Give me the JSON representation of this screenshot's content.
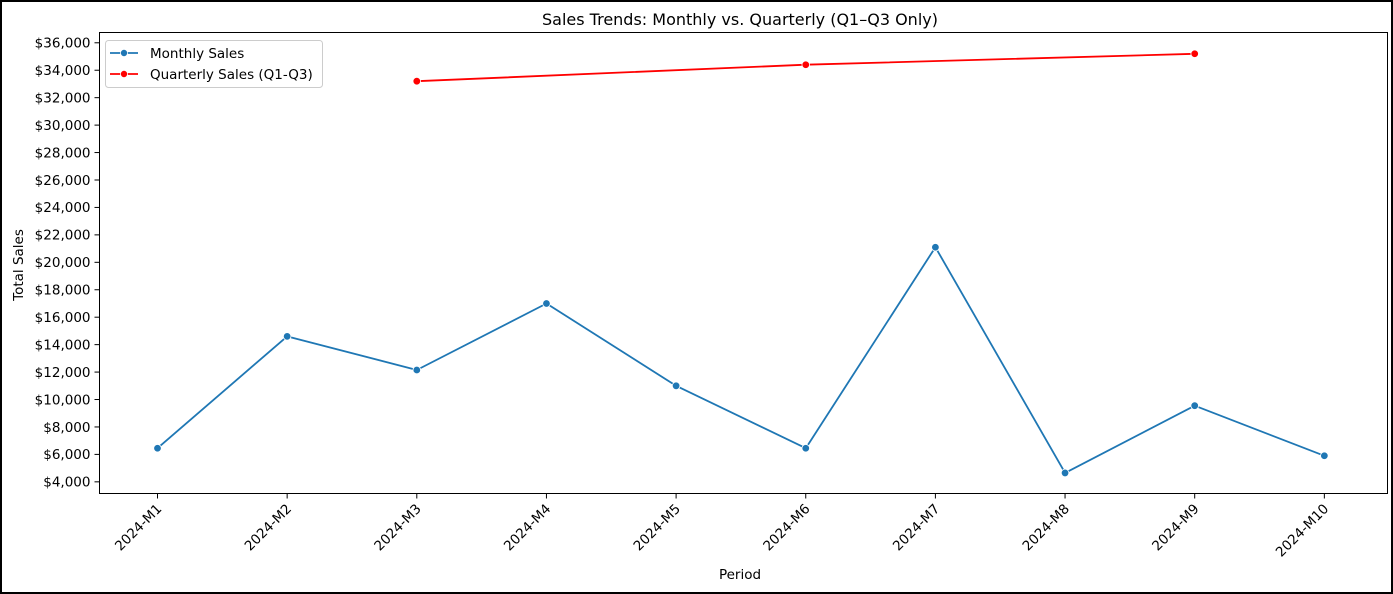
{
  "chart_data": {
    "type": "line",
    "title": "Sales Trends: Monthly vs. Quarterly (Q1–Q3 Only)",
    "xlabel": "Period",
    "ylabel": "Total Sales",
    "categories": [
      "2024-M1",
      "2024-M2",
      "2024-M3",
      "2024-M4",
      "2024-M5",
      "2024-M6",
      "2024-M7",
      "2024-M8",
      "2024-M9",
      "2024-M10"
    ],
    "y_ticks": [
      4000,
      6000,
      8000,
      10000,
      12000,
      14000,
      16000,
      18000,
      20000,
      22000,
      24000,
      26000,
      28000,
      30000,
      32000,
      34000,
      36000
    ],
    "y_tick_labels": [
      "$4,000",
      "$6,000",
      "$8,000",
      "$10,000",
      "$12,000",
      "$14,000",
      "$16,000",
      "$18,000",
      "$20,000",
      "$22,000",
      "$24,000",
      "$26,000",
      "$28,000",
      "$30,000",
      "$32,000",
      "$34,000",
      "$36,000"
    ],
    "ylim": [
      3150,
      36750
    ],
    "grid": false,
    "legend_position": "top-left",
    "series": [
      {
        "name": "Monthly Sales",
        "color": "#1f77b4",
        "marker": "circle",
        "values": [
          6450,
          14600,
          12150,
          17000,
          11000,
          6450,
          21100,
          4650,
          9550,
          5900
        ]
      },
      {
        "name": "Quarterly Sales (Q1-Q3)",
        "color": "#ff0000",
        "marker": "circle",
        "values": [
          null,
          null,
          33200,
          null,
          null,
          34400,
          null,
          null,
          35200,
          null
        ]
      }
    ]
  }
}
